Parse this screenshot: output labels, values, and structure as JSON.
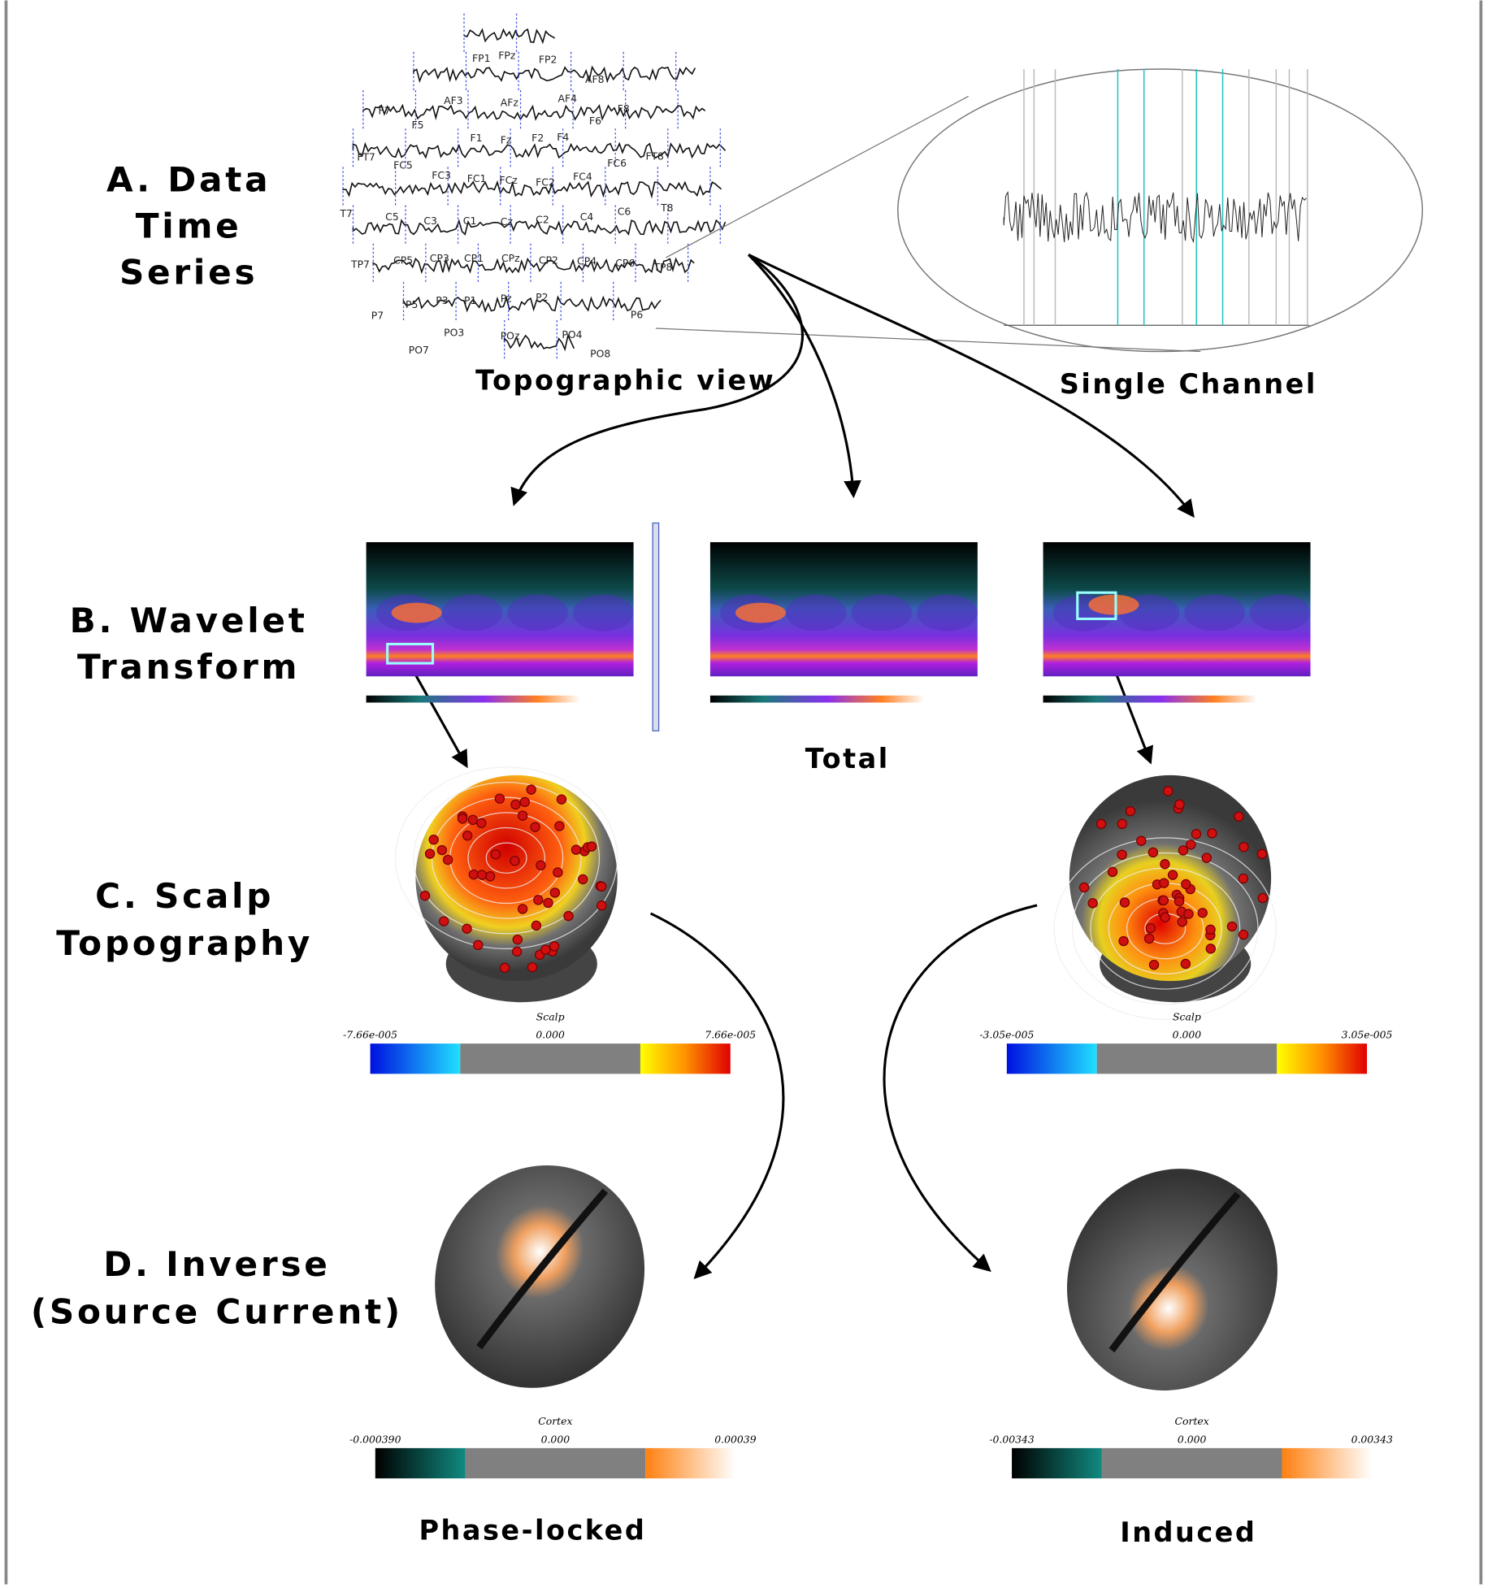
{
  "sections": [
    {
      "lines": [
        "A. Data",
        "Time",
        "Series"
      ]
    },
    {
      "lines": [
        "B. Wavelet",
        "Transform"
      ]
    },
    {
      "lines": [
        "C. Scalp",
        "Topography"
      ]
    },
    {
      "lines": [
        "D. Inverse",
        "(Source Current)"
      ]
    }
  ],
  "captions": {
    "topographic": "Topographic view",
    "single_channel": "Single Channel",
    "total": "Total",
    "phase_locked": "Phase-locked",
    "induced": "Induced"
  },
  "electrodes": [
    "FP1",
    "FPz",
    "FP2",
    "AF3",
    "AFz",
    "AF4",
    "AF8",
    "F7",
    "F5",
    "F1",
    "Fz",
    "F2",
    "F4",
    "F6",
    "F8",
    "FT7",
    "FC5",
    "FC3",
    "FC1",
    "FCz",
    "FC2",
    "FC4",
    "FC6",
    "FT8",
    "T7",
    "C5",
    "C3",
    "C1",
    "Cz",
    "C2",
    "C4",
    "C6",
    "T8",
    "TP7",
    "CP5",
    "CP3",
    "CP1",
    "CPz",
    "CP2",
    "CP4",
    "CP6",
    "TP8",
    "P7",
    "P5",
    "P3",
    "P1",
    "Pz",
    "P2",
    "P6",
    "PO7",
    "PO3",
    "POz",
    "PO4",
    "PO8"
  ],
  "scalp_colorbars": [
    {
      "title": "Scalp",
      "min": "-7.66e-005",
      "mid": "0.000",
      "max": "7.66e-005"
    },
    {
      "title": "Scalp",
      "min": "-3.05e-005",
      "mid": "0.000",
      "max": "3.05e-005"
    }
  ],
  "cortex_colorbars": [
    {
      "title": "Cortex",
      "min": "-0.000390",
      "mid": "0.000",
      "max": "0.00039"
    },
    {
      "title": "Cortex",
      "min": "-0.00343",
      "mid": "0.000",
      "max": "0.00343"
    }
  ]
}
